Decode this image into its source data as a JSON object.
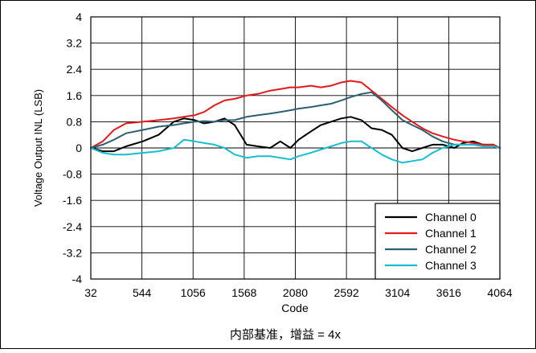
{
  "chart_data": {
    "type": "line",
    "title": "",
    "caption": "内部基准，增益 = 4x",
    "xlabel": "Code",
    "ylabel": "Voltage Output INL (LSB)",
    "xlim": [
      32,
      4064
    ],
    "ylim": [
      -4,
      4
    ],
    "x_ticks": [
      "32",
      "544",
      "1056",
      "1568",
      "2080",
      "2592",
      "3104",
      "3616",
      "4064"
    ],
    "y_ticks": [
      "4",
      "3.2",
      "2.4",
      "1.6",
      "0.8",
      "0",
      "-0.8",
      "-1.6",
      "-2.4",
      "-3.2",
      "-4"
    ],
    "grid": true,
    "legend_position": "bottom-right",
    "series": [
      {
        "name": "Channel 0",
        "color": "#000000",
        "x": [
          32,
          150,
          260,
          380,
          544,
          700,
          850,
          950,
          1056,
          1150,
          1250,
          1350,
          1450,
          1568,
          1680,
          1800,
          1900,
          2000,
          2080,
          2200,
          2300,
          2400,
          2500,
          2592,
          2700,
          2800,
          2900,
          3000,
          3104,
          3200,
          3300,
          3400,
          3500,
          3616,
          3700,
          3800,
          3900,
          4000,
          4064
        ],
        "y": [
          0.0,
          -0.1,
          -0.1,
          0.05,
          0.2,
          0.4,
          0.8,
          0.9,
          0.85,
          0.75,
          0.8,
          0.9,
          0.7,
          0.1,
          0.05,
          0.0,
          0.2,
          0.0,
          0.25,
          0.5,
          0.7,
          0.8,
          0.9,
          0.95,
          0.85,
          0.6,
          0.55,
          0.4,
          0.0,
          -0.1,
          0.0,
          0.1,
          0.1,
          0.0,
          0.15,
          0.2,
          0.1,
          0.1,
          0.0
        ]
      },
      {
        "name": "Channel 1",
        "color": "#e41a1c",
        "x": [
          32,
          150,
          260,
          380,
          544,
          700,
          850,
          950,
          1056,
          1150,
          1250,
          1350,
          1450,
          1568,
          1680,
          1800,
          1900,
          2000,
          2080,
          2200,
          2300,
          2400,
          2500,
          2592,
          2700,
          2800,
          2900,
          3000,
          3104,
          3200,
          3300,
          3400,
          3500,
          3616,
          3700,
          3800,
          3900,
          4000,
          4064
        ],
        "y": [
          0.0,
          0.2,
          0.55,
          0.75,
          0.8,
          0.85,
          0.9,
          0.95,
          1.0,
          1.1,
          1.3,
          1.45,
          1.5,
          1.6,
          1.65,
          1.75,
          1.8,
          1.85,
          1.85,
          1.9,
          1.85,
          1.9,
          2.0,
          2.05,
          2.0,
          1.75,
          1.5,
          1.25,
          1.0,
          0.8,
          0.6,
          0.45,
          0.35,
          0.25,
          0.2,
          0.15,
          0.1,
          0.1,
          0.0
        ]
      },
      {
        "name": "Channel 2",
        "color": "#2c5f72",
        "x": [
          32,
          150,
          260,
          380,
          544,
          700,
          850,
          950,
          1056,
          1150,
          1250,
          1350,
          1450,
          1568,
          1680,
          1800,
          1900,
          2000,
          2080,
          2200,
          2300,
          2400,
          2500,
          2592,
          2700,
          2800,
          2900,
          3000,
          3104,
          3200,
          3300,
          3400,
          3500,
          3616,
          3700,
          3800,
          3900,
          4000,
          4064
        ],
        "y": [
          0.0,
          0.1,
          0.25,
          0.45,
          0.55,
          0.65,
          0.7,
          0.75,
          0.8,
          0.82,
          0.8,
          0.85,
          0.85,
          0.95,
          1.0,
          1.05,
          1.1,
          1.15,
          1.2,
          1.25,
          1.3,
          1.35,
          1.45,
          1.55,
          1.65,
          1.7,
          1.45,
          1.15,
          0.85,
          0.7,
          0.55,
          0.35,
          0.2,
          0.1,
          0.1,
          0.1,
          0.05,
          0.05,
          0.0
        ]
      },
      {
        "name": "Channel 3",
        "color": "#17becf",
        "x": [
          32,
          150,
          260,
          380,
          544,
          700,
          850,
          950,
          1056,
          1150,
          1250,
          1350,
          1450,
          1568,
          1680,
          1800,
          1900,
          2000,
          2080,
          2200,
          2300,
          2400,
          2500,
          2592,
          2700,
          2800,
          2900,
          3000,
          3104,
          3200,
          3300,
          3400,
          3500,
          3616,
          3700,
          3800,
          3900,
          4000,
          4064
        ],
        "y": [
          0.0,
          -0.15,
          -0.2,
          -0.2,
          -0.15,
          -0.1,
          0.0,
          0.25,
          0.2,
          0.15,
          0.1,
          0.0,
          -0.2,
          -0.3,
          -0.25,
          -0.25,
          -0.3,
          -0.35,
          -0.25,
          -0.15,
          -0.05,
          0.05,
          0.15,
          0.2,
          0.2,
          0.0,
          -0.2,
          -0.35,
          -0.45,
          -0.4,
          -0.35,
          -0.15,
          0.0,
          0.1,
          0.1,
          0.1,
          0.05,
          0.05,
          0.0
        ]
      }
    ]
  }
}
